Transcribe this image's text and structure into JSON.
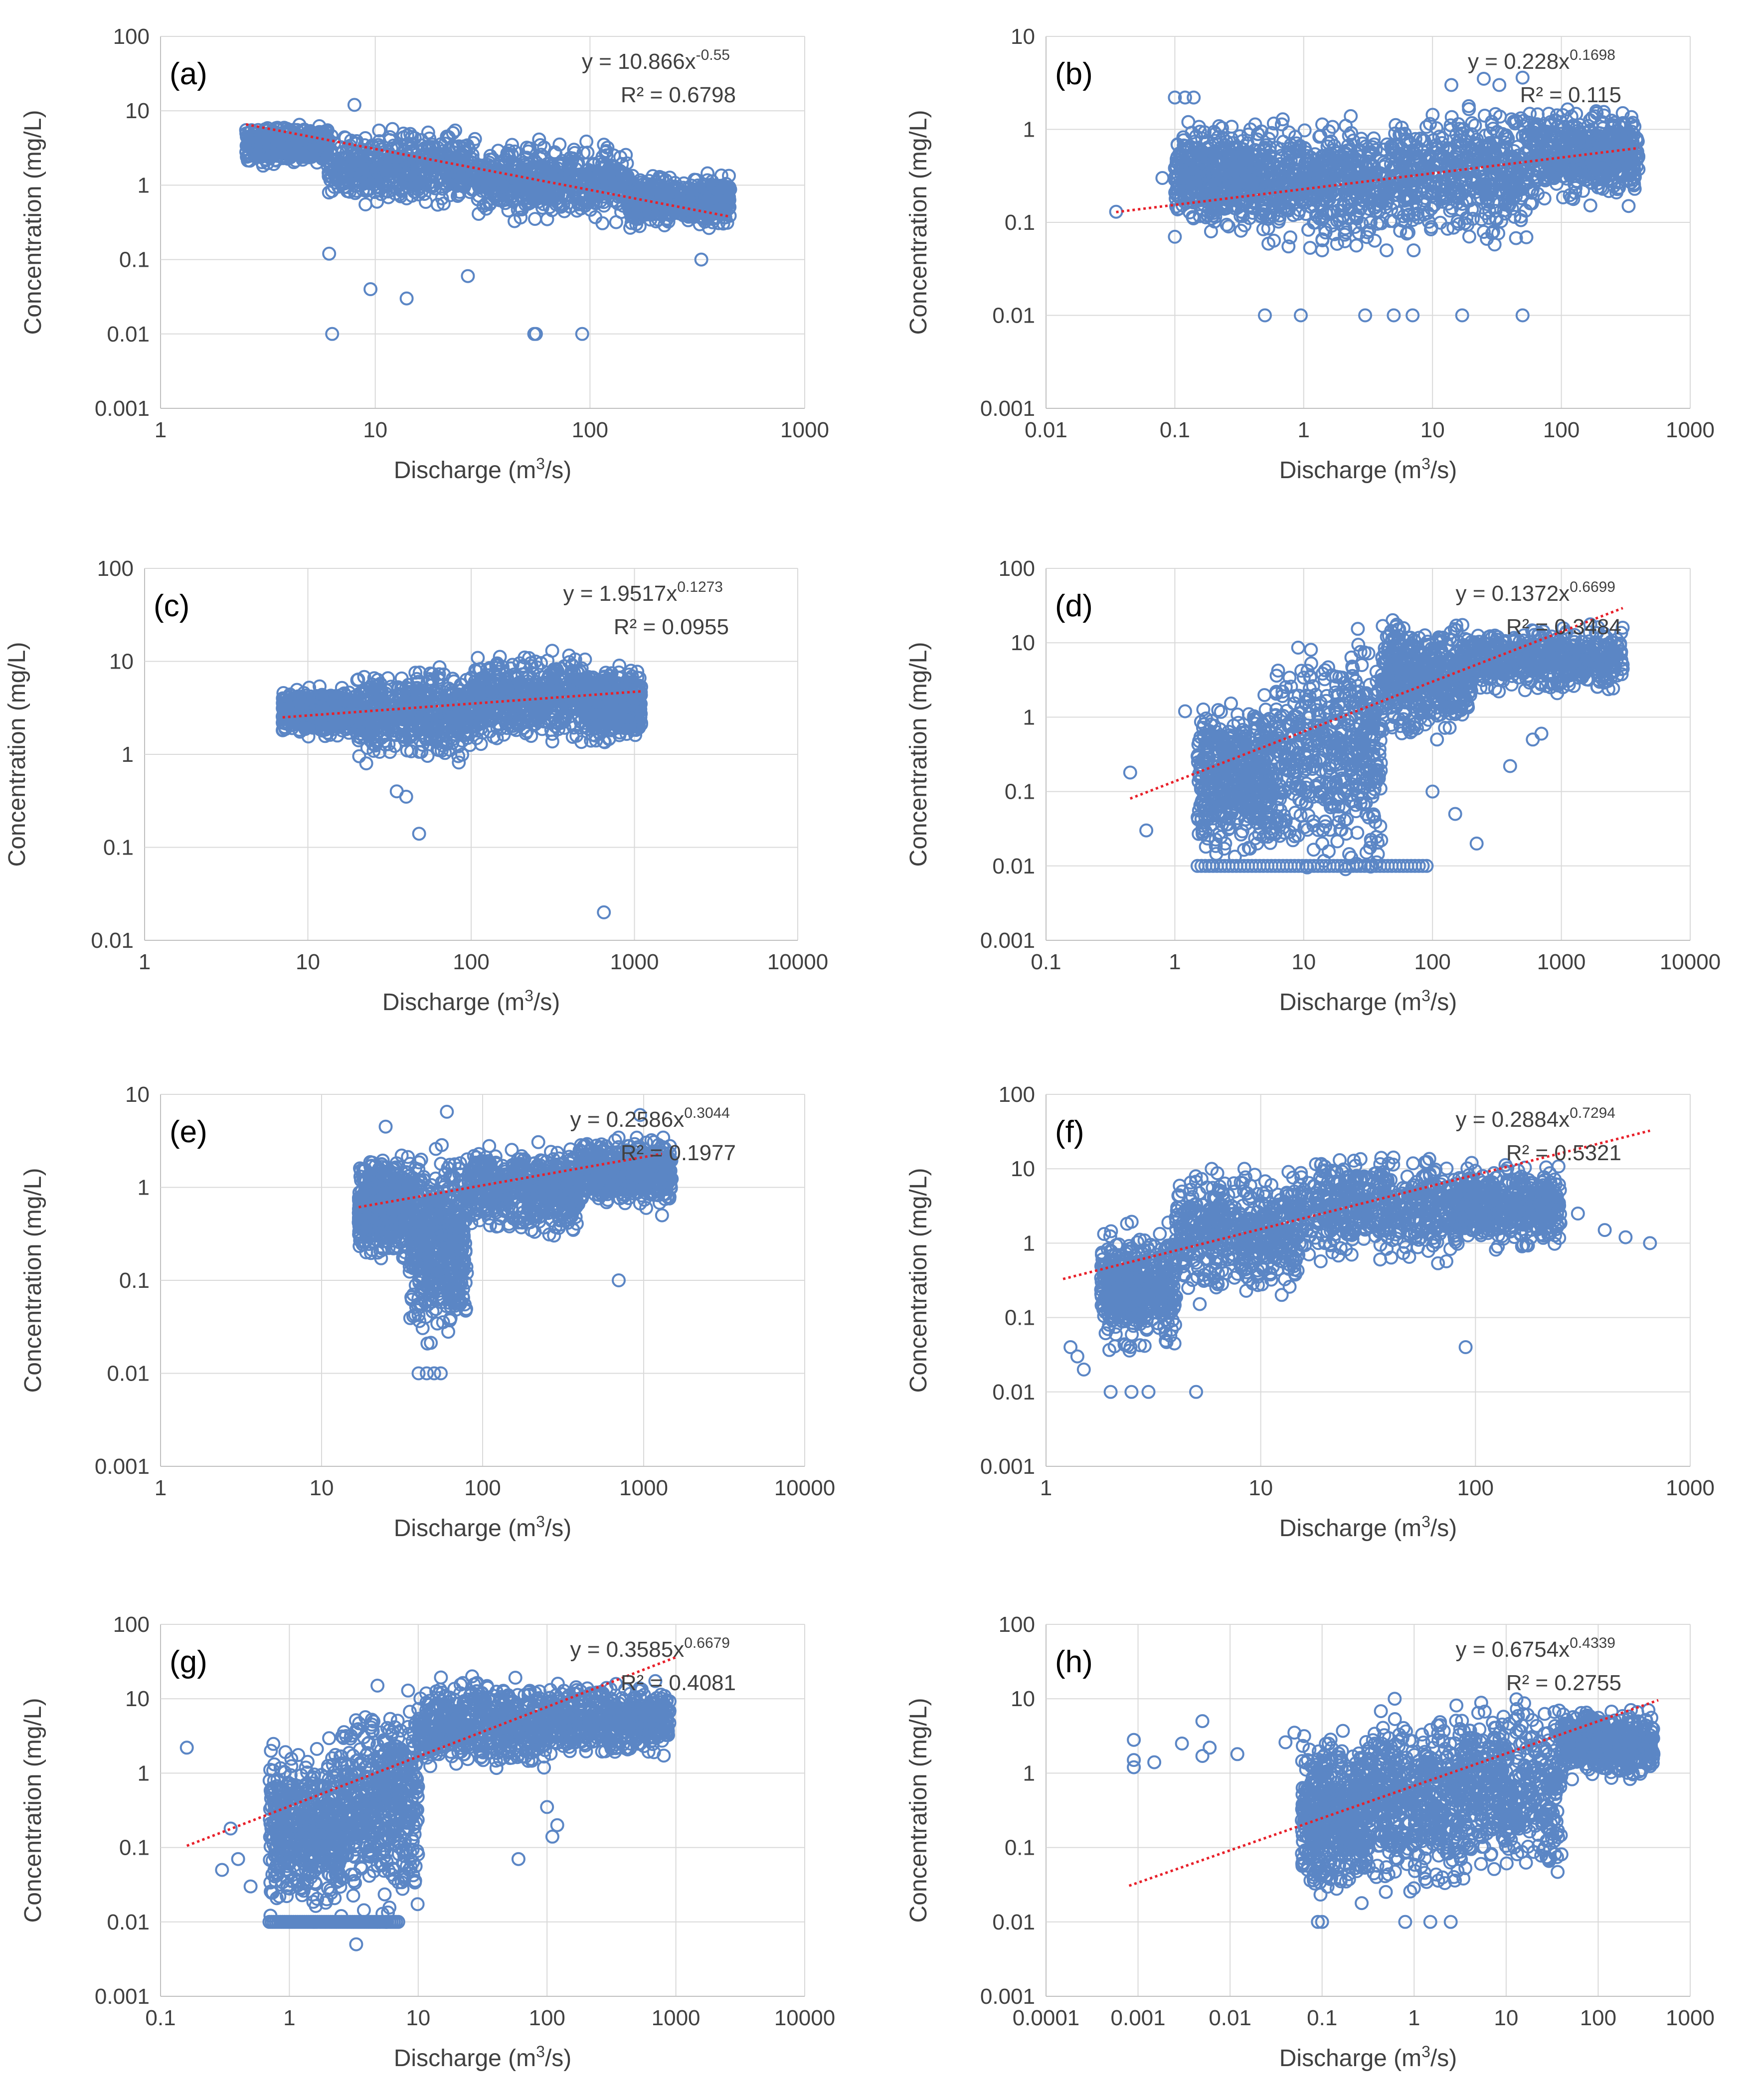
{
  "figure": {
    "description_free": true
  },
  "style": {
    "marker_color": "#5b86c5",
    "trend_color": "#e8202a",
    "grid_color": "#d9d9d9",
    "axis_color": "#bfbfbf",
    "text_color": "#404040"
  },
  "chart_data": [
    {
      "panel": "(a)",
      "type": "scatter",
      "xscale": "log",
      "yscale": "log",
      "xlim": [
        1,
        1000
      ],
      "ylim": [
        0.001,
        100
      ],
      "xticks": [
        "1",
        "10",
        "100",
        "1000"
      ],
      "yticks": [
        "0.001",
        "0.01",
        "0.1",
        "1",
        "10",
        "100"
      ],
      "xlabel": "Discharge (m",
      "xlabel_sup": "3",
      "xlabel_tail": "/s)",
      "ylabel": "Concentration (mg/L)",
      "equation": "y = 10.866x",
      "equation_exp": "-0.55",
      "r2": "R² = 0.6798",
      "fit": {
        "a": 10.866,
        "b": -0.55,
        "x_range": [
          2.5,
          450
        ]
      },
      "cloud": [
        {
          "x": [
            2.5,
            6
          ],
          "y": [
            1.8,
            7
          ]
        },
        {
          "x": [
            6,
            30
          ],
          "y": [
            0.5,
            6
          ]
        },
        {
          "x": [
            30,
            150
          ],
          "y": [
            0.3,
            4.5
          ]
        },
        {
          "x": [
            150,
            450
          ],
          "y": [
            0.25,
            1.5
          ]
        }
      ],
      "outliers": [
        [
          8,
          12
        ],
        [
          6.1,
          0.12
        ],
        [
          9.5,
          0.04
        ],
        [
          14,
          0.03
        ],
        [
          6.3,
          0.01
        ],
        [
          55,
          0.01
        ],
        [
          56,
          0.01
        ],
        [
          92,
          0.01
        ],
        [
          27,
          0.06
        ],
        [
          330,
          0.1
        ]
      ]
    },
    {
      "panel": "(b)",
      "type": "scatter",
      "xscale": "log",
      "yscale": "log",
      "xlim": [
        0.01,
        1000
      ],
      "ylim": [
        0.001,
        10
      ],
      "xticks": [
        "0.01",
        "0.1",
        "1",
        "10",
        "100",
        "1000"
      ],
      "yticks": [
        "0.001",
        "0.01",
        "0.1",
        "1",
        "10"
      ],
      "xlabel": "Discharge (m",
      "xlabel_sup": "3",
      "xlabel_tail": "/s)",
      "ylabel": "Concentration (mg/L)",
      "equation": "y = 0.228x",
      "equation_exp": "0.1698",
      "r2": "R² = 0.115",
      "fit": {
        "a": 0.228,
        "b": 0.1698,
        "x_range": [
          0.035,
          400
        ]
      },
      "cloud": [
        {
          "x": [
            0.1,
            0.5
          ],
          "y": [
            0.08,
            1.2
          ]
        },
        {
          "x": [
            0.5,
            5
          ],
          "y": [
            0.05,
            1.6
          ]
        },
        {
          "x": [
            5,
            60
          ],
          "y": [
            0.05,
            2
          ]
        },
        {
          "x": [
            60,
            400
          ],
          "y": [
            0.15,
            1.8
          ]
        }
      ],
      "outliers": [
        [
          0.035,
          0.13
        ],
        [
          0.1,
          2.2
        ],
        [
          0.12,
          2.2
        ],
        [
          0.14,
          2.2
        ],
        [
          0.5,
          0.01
        ],
        [
          0.95,
          0.01
        ],
        [
          3,
          0.01
        ],
        [
          5,
          0.01
        ],
        [
          7,
          0.01
        ],
        [
          17,
          0.01
        ],
        [
          50,
          0.01
        ],
        [
          14,
          3
        ],
        [
          25,
          3.5
        ],
        [
          33,
          3
        ],
        [
          50,
          3.6
        ],
        [
          0.08,
          0.3
        ],
        [
          0.1,
          0.07
        ]
      ]
    },
    {
      "panel": "(c)",
      "type": "scatter",
      "xscale": "log",
      "yscale": "log",
      "xlim": [
        1,
        10000
      ],
      "ylim": [
        0.01,
        100
      ],
      "xticks": [
        "1",
        "10",
        "100",
        "1000",
        "10000"
      ],
      "yticks": [
        "0.01",
        "0.1",
        "1",
        "10",
        "100"
      ],
      "xlabel": "Discharge (m",
      "xlabel_sup": "3",
      "xlabel_tail": "/s)",
      "ylabel": "Concentration (mg/L)",
      "equation": "y = 1.9517x",
      "equation_exp": "0.1273",
      "r2": "R² = 0.0955",
      "fit": {
        "a": 1.9517,
        "b": 0.1273,
        "x_range": [
          7,
          1100
        ]
      },
      "cloud": [
        {
          "x": [
            7,
            20
          ],
          "y": [
            1.5,
            5.5
          ]
        },
        {
          "x": [
            20,
            100
          ],
          "y": [
            0.8,
            9
          ]
        },
        {
          "x": [
            100,
            500
          ],
          "y": [
            1.2,
            13
          ]
        },
        {
          "x": [
            500,
            1100
          ],
          "y": [
            1.2,
            9
          ]
        }
      ],
      "outliers": [
        [
          35,
          0.4
        ],
        [
          48,
          0.14
        ],
        [
          40,
          0.35
        ],
        [
          650,
          0.02
        ]
      ]
    },
    {
      "panel": "(d)",
      "type": "scatter",
      "xscale": "log",
      "yscale": "log",
      "xlim": [
        0.1,
        10000
      ],
      "ylim": [
        0.001,
        100
      ],
      "xticks": [
        "0.1",
        "1",
        "10",
        "100",
        "1000",
        "10000"
      ],
      "yticks": [
        "0.001",
        "0.01",
        "0.1",
        "1",
        "10",
        "100"
      ],
      "xlabel": "Discharge (m",
      "xlabel_sup": "3",
      "xlabel_tail": "/s)",
      "ylabel": "Concentration (mg/L)",
      "equation": "y = 0.1372x",
      "equation_exp": "0.6699",
      "r2": "R² = 0.3484",
      "fit": {
        "a": 0.1372,
        "b": 0.6699,
        "x_range": [
          0.45,
          3000
        ]
      },
      "cloud": [
        {
          "x": [
            1.5,
            6
          ],
          "y": [
            0.01,
            2
          ]
        },
        {
          "x": [
            6,
            40
          ],
          "y": [
            0.006,
            18
          ]
        },
        {
          "x": [
            40,
            200
          ],
          "y": [
            0.5,
            22
          ]
        },
        {
          "x": [
            200,
            3000
          ],
          "y": [
            2,
            18
          ]
        }
      ],
      "outliers": [
        [
          0.45,
          0.18
        ],
        [
          0.6,
          0.03
        ],
        [
          1.2,
          1.2
        ],
        [
          1.5,
          0.3
        ],
        [
          100,
          0.1
        ],
        [
          150,
          0.05
        ],
        [
          220,
          0.02
        ],
        [
          600,
          0.5
        ],
        [
          400,
          0.22
        ],
        [
          700,
          0.6
        ]
      ],
      "floor": {
        "y": 0.01,
        "x": [
          1.5,
          90
        ]
      }
    },
    {
      "panel": "(e)",
      "type": "scatter",
      "xscale": "log",
      "yscale": "log",
      "xlim": [
        1,
        10000
      ],
      "ylim": [
        0.001,
        10
      ],
      "xticks": [
        "1",
        "10",
        "100",
        "1000",
        "10000"
      ],
      "yticks": [
        "0.001",
        "0.01",
        "0.1",
        "1",
        "10"
      ],
      "xlabel": "Discharge (m",
      "xlabel_sup": "3",
      "xlabel_tail": "/s)",
      "ylabel": "Concentration (mg/L)",
      "equation": "y = 0.2586x",
      "equation_exp": "0.3044",
      "r2": "R² = 0.1977",
      "fit": {
        "a": 0.2586,
        "b": 0.3044,
        "x_range": [
          17,
          1300
        ]
      },
      "cloud": [
        {
          "x": [
            17,
            35
          ],
          "y": [
            0.15,
            2.5
          ]
        },
        {
          "x": [
            35,
            80
          ],
          "y": [
            0.02,
            3
          ]
        },
        {
          "x": [
            80,
            400
          ],
          "y": [
            0.3,
            3.2
          ]
        },
        {
          "x": [
            400,
            1500
          ],
          "y": [
            0.6,
            3.5
          ]
        }
      ],
      "outliers": [
        [
          25,
          4.5
        ],
        [
          60,
          6.5
        ],
        [
          700,
          0.1
        ],
        [
          1300,
          0.5
        ],
        [
          40,
          0.01
        ],
        [
          45,
          0.01
        ],
        [
          50,
          0.01
        ],
        [
          55,
          0.01
        ],
        [
          950,
          6
        ]
      ]
    },
    {
      "panel": "(f)",
      "type": "scatter",
      "xscale": "log",
      "yscale": "log",
      "xlim": [
        1,
        1000
      ],
      "ylim": [
        0.001,
        100
      ],
      "xticks": [
        "1",
        "10",
        "100",
        "1000"
      ],
      "yticks": [
        "0.001",
        "0.01",
        "0.1",
        "1",
        "10",
        "100"
      ],
      "xlabel": "Discharge (m",
      "xlabel_sup": "3",
      "xlabel_tail": "/s)",
      "ylabel": "Concentration (mg/L)",
      "equation": "y = 0.2884x",
      "equation_exp": "0.7294",
      "r2": "R² = 0.5321",
      "fit": {
        "a": 0.2884,
        "b": 0.7294,
        "x_range": [
          1.2,
          650
        ]
      },
      "cloud": [
        {
          "x": [
            1.8,
            4
          ],
          "y": [
            0.03,
            2
          ]
        },
        {
          "x": [
            4,
            15
          ],
          "y": [
            0.15,
            12
          ]
        },
        {
          "x": [
            15,
            80
          ],
          "y": [
            0.5,
            18
          ]
        },
        {
          "x": [
            80,
            250
          ],
          "y": [
            0.8,
            12
          ]
        }
      ],
      "outliers": [
        [
          1.3,
          0.04
        ],
        [
          1.4,
          0.03
        ],
        [
          1.5,
          0.02
        ],
        [
          2,
          0.01
        ],
        [
          2.5,
          0.01
        ],
        [
          3,
          0.01
        ],
        [
          5,
          0.01
        ],
        [
          90,
          0.04
        ],
        [
          650,
          1
        ],
        [
          500,
          1.2
        ],
        [
          400,
          1.5
        ],
        [
          300,
          2.5
        ]
      ]
    },
    {
      "panel": "(g)",
      "type": "scatter",
      "xscale": "log",
      "yscale": "log",
      "xlim": [
        0.1,
        10000
      ],
      "ylim": [
        0.001,
        100
      ],
      "xticks": [
        "0.1",
        "1",
        "10",
        "100",
        "1000",
        "10000"
      ],
      "yticks": [
        "0.001",
        "0.01",
        "0.1",
        "1",
        "10",
        "100"
      ],
      "xlabel": "Discharge (m",
      "xlabel_sup": "3",
      "xlabel_tail": "/s)",
      "ylabel": "Concentration (mg/L)",
      "equation": "y = 0.3585x",
      "equation_exp": "0.6679",
      "r2": "R² = 0.4081",
      "fit": {
        "a": 0.3585,
        "b": 0.6679,
        "x_range": [
          0.16,
          1000
        ]
      },
      "cloud": [
        {
          "x": [
            0.7,
            2.5
          ],
          "y": [
            0.01,
            3
          ]
        },
        {
          "x": [
            2.5,
            10
          ],
          "y": [
            0.01,
            15
          ]
        },
        {
          "x": [
            10,
            100
          ],
          "y": [
            1,
            20
          ]
        },
        {
          "x": [
            100,
            900
          ],
          "y": [
            1.5,
            18
          ]
        }
      ],
      "outliers": [
        [
          0.16,
          2.2
        ],
        [
          0.3,
          0.05
        ],
        [
          0.35,
          0.18
        ],
        [
          0.4,
          0.07
        ],
        [
          0.5,
          0.03
        ],
        [
          60,
          0.07
        ],
        [
          100,
          0.35
        ],
        [
          110,
          0.14
        ],
        [
          120,
          0.2
        ],
        [
          3.3,
          0.005
        ]
      ],
      "floor": {
        "y": 0.01,
        "x": [
          0.7,
          7
        ]
      }
    },
    {
      "panel": "(h)",
      "type": "scatter",
      "xscale": "log",
      "yscale": "log",
      "xlim": [
        0.0001,
        1000
      ],
      "ylim": [
        0.001,
        100
      ],
      "xticks": [
        "0.0001",
        "0.001",
        "0.01",
        "0.1",
        "1",
        "10",
        "100",
        "1000"
      ],
      "yticks": [
        "0.001",
        "0.01",
        "0.1",
        "1",
        "10",
        "100"
      ],
      "xlabel": "Discharge (m",
      "xlabel_sup": "3",
      "xlabel_tail": "/s)",
      "ylabel": "Concentration (mg/L)",
      "equation": "y = 0.6754x",
      "equation_exp": "0.4339",
      "r2": "R² = 0.2755",
      "fit": {
        "a": 0.6754,
        "b": 0.4339,
        "x_range": [
          0.0008,
          450
        ]
      },
      "cloud": [
        {
          "x": [
            0.06,
            0.3
          ],
          "y": [
            0.015,
            4
          ]
        },
        {
          "x": [
            0.3,
            3
          ],
          "y": [
            0.02,
            10
          ]
        },
        {
          "x": [
            3,
            40
          ],
          "y": [
            0.03,
            13
          ]
        },
        {
          "x": [
            40,
            400
          ],
          "y": [
            0.8,
            8
          ]
        }
      ],
      "outliers": [
        [
          0.0009,
          2.8
        ],
        [
          0.0009,
          1.5
        ],
        [
          0.0009,
          1.2
        ],
        [
          0.0015,
          1.4
        ],
        [
          0.003,
          2.5
        ],
        [
          0.005,
          5
        ],
        [
          0.005,
          1.7
        ],
        [
          0.006,
          2.2
        ],
        [
          0.012,
          1.8
        ],
        [
          0.04,
          2.6
        ],
        [
          0.05,
          3.5
        ],
        [
          0.07,
          1.5
        ],
        [
          0.09,
          0.01
        ],
        [
          0.1,
          0.01
        ],
        [
          0.8,
          0.01
        ],
        [
          1.5,
          0.01
        ],
        [
          2.5,
          0.01
        ]
      ]
    }
  ]
}
